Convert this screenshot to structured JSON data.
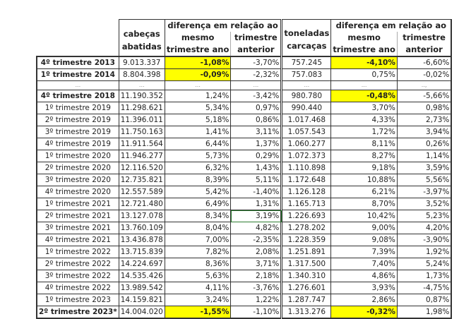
{
  "header": {
    "cabecas": "cabeças abatidas",
    "cabecas_l1": "cabeças",
    "cabecas_l2": "abatidas",
    "dif_group": "diferença em relação ao",
    "mesmo_l1": "mesmo",
    "mesmo_l2": "trimestre ano",
    "anterior_l1": "trimestre",
    "anterior_l2": "anterior",
    "ton_l1": "toneladas",
    "ton_l2": "carcaças"
  },
  "rows": [
    {
      "label": "4º trimestre 2013",
      "cab": "9.013.337",
      "cab_yoy": "-1,08%",
      "cab_qoq": "-3,70%",
      "ton": "757.245",
      "ton_yoy": "-4,10%",
      "ton_qoq": "-6,60%"
    },
    {
      "label": "1º trimestre 2014",
      "cab": "8.804.398",
      "cab_yoy": "-0,09%",
      "cab_qoq": "-2,32%",
      "ton": "757.083",
      "ton_yoy": "0,75%",
      "ton_qoq": "-0,02%"
    },
    {
      "label": "...",
      "cab": "...",
      "cab_yoy": "...",
      "cab_qoq": "...",
      "ton": "...",
      "ton_yoy": "...",
      "ton_qoq": "..,"
    },
    {
      "label": "4º trimestre 2018",
      "cab": "11.190.352",
      "cab_yoy": "1,24%",
      "cab_qoq": "-3,42%",
      "ton": "980.780",
      "ton_yoy": "-0,48%",
      "ton_qoq": "-5,66%"
    },
    {
      "label": "1º trimestre 2019",
      "cab": "11.298.621",
      "cab_yoy": "5,34%",
      "cab_qoq": "0,97%",
      "ton": "990.440",
      "ton_yoy": "3,70%",
      "ton_qoq": "0,98%"
    },
    {
      "label": "2º trimestre 2019",
      "cab": "11.396.011",
      "cab_yoy": "5,18%",
      "cab_qoq": "0,86%",
      "ton": "1.017.468",
      "ton_yoy": "4,33%",
      "ton_qoq": "2,73%"
    },
    {
      "label": "3º trimestre 2019",
      "cab": "11.750.163",
      "cab_yoy": "1,41%",
      "cab_qoq": "3,11%",
      "ton": "1.057.543",
      "ton_yoy": "1,72%",
      "ton_qoq": "3,94%"
    },
    {
      "label": "4º trimestre 2019",
      "cab": "11.911.564",
      "cab_yoy": "6,44%",
      "cab_qoq": "1,37%",
      "ton": "1.060.277",
      "ton_yoy": "8,11%",
      "ton_qoq": "0,26%"
    },
    {
      "label": "1º trimestre 2020",
      "cab": "11.946.277",
      "cab_yoy": "5,73%",
      "cab_qoq": "0,29%",
      "ton": "1.072.373",
      "ton_yoy": "8,27%",
      "ton_qoq": "1,14%"
    },
    {
      "label": "2º trimestre 2020",
      "cab": "12.116.520",
      "cab_yoy": "6,32%",
      "cab_qoq": "1,43%",
      "ton": "1.110.898",
      "ton_yoy": "9,18%",
      "ton_qoq": "3,59%"
    },
    {
      "label": "3º trimestre 2020",
      "cab": "12.735.821",
      "cab_yoy": "8,39%",
      "cab_qoq": "5,11%",
      "ton": "1.172.648",
      "ton_yoy": "10,88%",
      "ton_qoq": "5,56%"
    },
    {
      "label": "4º trimestre 2020",
      "cab": "12.557.589",
      "cab_yoy": "5,42%",
      "cab_qoq": "-1,40%",
      "ton": "1.126.128",
      "ton_yoy": "6,21%",
      "ton_qoq": "-3,97%"
    },
    {
      "label": "1º trimestre 2021",
      "cab": "12.721.480",
      "cab_yoy": "6,49%",
      "cab_qoq": "1,31%",
      "ton": "1.165.713",
      "ton_yoy": "8,70%",
      "ton_qoq": "3,52%"
    },
    {
      "label": "2º trimestre 2021",
      "cab": "13.127.078",
      "cab_yoy": "8,34%",
      "cab_qoq": "3,19%",
      "ton": "1.226.693",
      "ton_yoy": "10,42%",
      "ton_qoq": "5,23%"
    },
    {
      "label": "3º trimestre 2021",
      "cab": "13.760.109",
      "cab_yoy": "8,04%",
      "cab_qoq": "4,82%",
      "ton": "1.278.202",
      "ton_yoy": "9,00%",
      "ton_qoq": "4,20%"
    },
    {
      "label": "4º trimestre 2021",
      "cab": "13.436.878",
      "cab_yoy": "7,00%",
      "cab_qoq": "-2,35%",
      "ton": "1.228.359",
      "ton_yoy": "9,08%",
      "ton_qoq": "-3,90%"
    },
    {
      "label": "1º trimestre 2022",
      "cab": "13.715.839",
      "cab_yoy": "7,82%",
      "cab_qoq": "2,08%",
      "ton": "1.251.891",
      "ton_yoy": "7,39%",
      "ton_qoq": "1,92%"
    },
    {
      "label": "2º trimestre 2022",
      "cab": "14.224.697",
      "cab_yoy": "8,36%",
      "cab_qoq": "3,71%",
      "ton": "1.317.500",
      "ton_yoy": "7,40%",
      "ton_qoq": "5,24%"
    },
    {
      "label": "3º trimestre 2022",
      "cab": "14.535.426",
      "cab_yoy": "5,63%",
      "cab_qoq": "2,18%",
      "ton": "1.340.310",
      "ton_yoy": "4,86%",
      "ton_qoq": "1,73%"
    },
    {
      "label": "4º trimestre 2022",
      "cab": "13.989.542",
      "cab_yoy": "4,11%",
      "cab_qoq": "-3,76%",
      "ton": "1.276.601",
      "ton_yoy": "3,93%",
      "ton_qoq": "-4,75%"
    },
    {
      "label": "1º trimestre 2023",
      "cab": "14.159.821",
      "cab_yoy": "3,24%",
      "cab_qoq": "1,22%",
      "ton": "1.287.747",
      "ton_yoy": "2,86%",
      "ton_qoq": "0,87%"
    },
    {
      "label": "2º trimestre 2023*",
      "cab": "14.004.020",
      "cab_yoy": "-1,55%",
      "cab_qoq": "-1,10%",
      "ton": "1.313.276",
      "ton_yoy": "-0,32%",
      "ton_qoq": "1,98%"
    }
  ],
  "highlight_color": "#ffff00",
  "bold_rows": [
    0,
    1,
    3,
    21
  ],
  "highlights": {
    "0": [
      "cab_yoy",
      "ton_yoy"
    ],
    "1": [
      "cab_yoy"
    ],
    "3": [
      "ton_yoy"
    ],
    "21": [
      "cab_yoy",
      "ton_yoy"
    ]
  },
  "selected_cell": {
    "row": 13,
    "col": "cab_qoq"
  }
}
